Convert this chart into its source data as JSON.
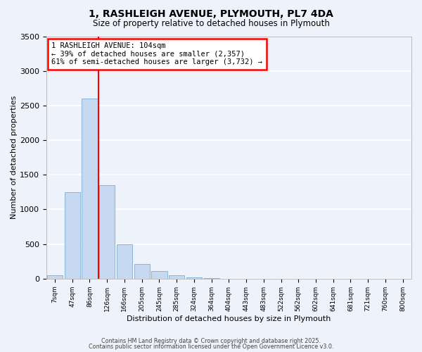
{
  "title": "1, RASHLEIGH AVENUE, PLYMOUTH, PL7 4DA",
  "subtitle": "Size of property relative to detached houses in Plymouth",
  "xlabel": "Distribution of detached houses by size in Plymouth",
  "ylabel": "Number of detached properties",
  "bar_color": "#c6d9f0",
  "bar_edge_color": "#7bafd4",
  "background_color": "#eef2fa",
  "grid_color": "#ffffff",
  "bin_labels": [
    "7sqm",
    "47sqm",
    "86sqm",
    "126sqm",
    "166sqm",
    "205sqm",
    "245sqm",
    "285sqm",
    "324sqm",
    "364sqm",
    "404sqm",
    "443sqm",
    "483sqm",
    "522sqm",
    "562sqm",
    "602sqm",
    "641sqm",
    "681sqm",
    "721sqm",
    "760sqm",
    "800sqm"
  ],
  "bar_values": [
    50,
    1250,
    2600,
    1350,
    500,
    210,
    110,
    50,
    15,
    5,
    2,
    2,
    1,
    0,
    0,
    0,
    0,
    0,
    0,
    0,
    0
  ],
  "ylim": [
    0,
    3500
  ],
  "yticks": [
    0,
    500,
    1000,
    1500,
    2000,
    2500,
    3000,
    3500
  ],
  "property_line_x": 2.5,
  "annotation_title": "1 RASHLEIGH AVENUE: 104sqm",
  "annotation_line1": "← 39% of detached houses are smaller (2,357)",
  "annotation_line2": "61% of semi-detached houses are larger (3,732) →",
  "footer1": "Contains HM Land Registry data © Crown copyright and database right 2025.",
  "footer2": "Contains public sector information licensed under the Open Government Licence v3.0."
}
